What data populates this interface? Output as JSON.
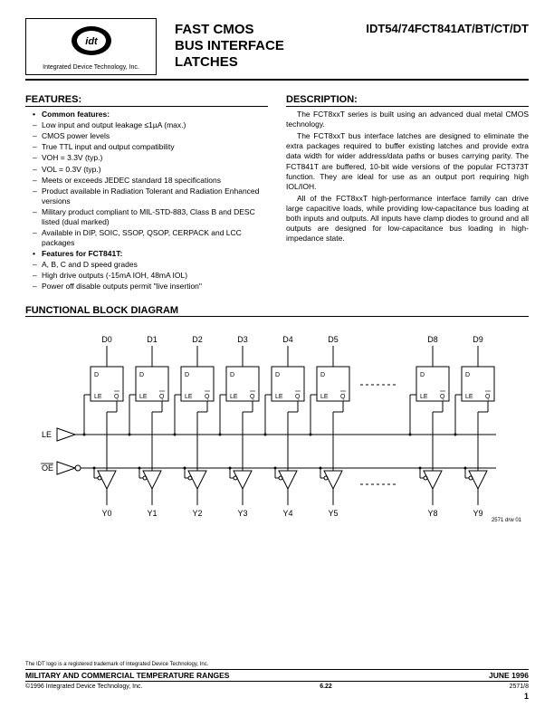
{
  "header": {
    "company": "Integrated Device Technology, Inc.",
    "title1": "FAST CMOS",
    "title2": "BUS INTERFACE",
    "title3": "LATCHES",
    "partnum": "IDT54/74FCT841AT/BT/CT/DT"
  },
  "features": {
    "head": "FEATURES:",
    "common": "Common features:",
    "items": [
      "Low input and output leakage ≤1µA (max.)",
      "CMOS power levels",
      "True TTL input and output compatibility"
    ],
    "sub": [
      "VOH = 3.3V (typ.)",
      "VOL = 0.3V (typ.)"
    ],
    "items2": [
      "Meets or exceeds JEDEC standard 18 specifications",
      "Product available in Radiation Tolerant and Radiation Enhanced versions",
      "Military product compliant to MIL-STD-883, Class B and DESC listed (dual marked)",
      "Available in DIP, SOIC, SSOP, QSOP, CERPACK and LCC packages"
    ],
    "fct": "Features for FCT841T:",
    "fctItems": [
      "A, B, C and D speed grades",
      "High drive outputs (-15mA IOH, 48mA IOL)",
      "Power off disable outputs permit \"live insertion\""
    ]
  },
  "description": {
    "head": "DESCRIPTION:",
    "p1": "The FCT8xxT series is built using an advanced dual metal CMOS technology.",
    "p2": "The FCT8xxT bus interface latches are designed to eliminate the extra packages required to buffer existing latches and provide extra data width for wider address/data paths or buses carrying parity. The FCT841T are buffered, 10-bit wide versions of the popular FCT373T function. They are ideal for use as an output port requiring high IOL/IOH.",
    "p3": "All of the FCT8xxT high-performance interface family can drive large capacitive loads, while providing low-capacitance bus loading at both inputs and outputs. All inputs have clamp diodes to ground and all outputs are designed for low-capacitance bus loading in high-impedance state."
  },
  "diagram": {
    "head": "FUNCTIONAL BLOCK DIAGRAM",
    "inputs": [
      "D0",
      "D1",
      "D2",
      "D3",
      "D4",
      "D5",
      "",
      "D8",
      "D9"
    ],
    "outputs": [
      "Y0",
      "Y1",
      "Y2",
      "Y3",
      "Y4",
      "Y5",
      "",
      "Y8",
      "Y9"
    ],
    "le": "LE",
    "oe": "OE",
    "drwnum": "2571 drw 01"
  },
  "footer": {
    "note": "The IDT logo is a registered trademark of Integrated Device Technology, Inc.",
    "bar_left": "MILITARY AND COMMERCIAL TEMPERATURE RANGES",
    "bar_right": "JUNE 1996",
    "copy": "©1996 Integrated Device Technology, Inc.",
    "sec": "6.22",
    "doc": "2571/8",
    "page": "1"
  }
}
